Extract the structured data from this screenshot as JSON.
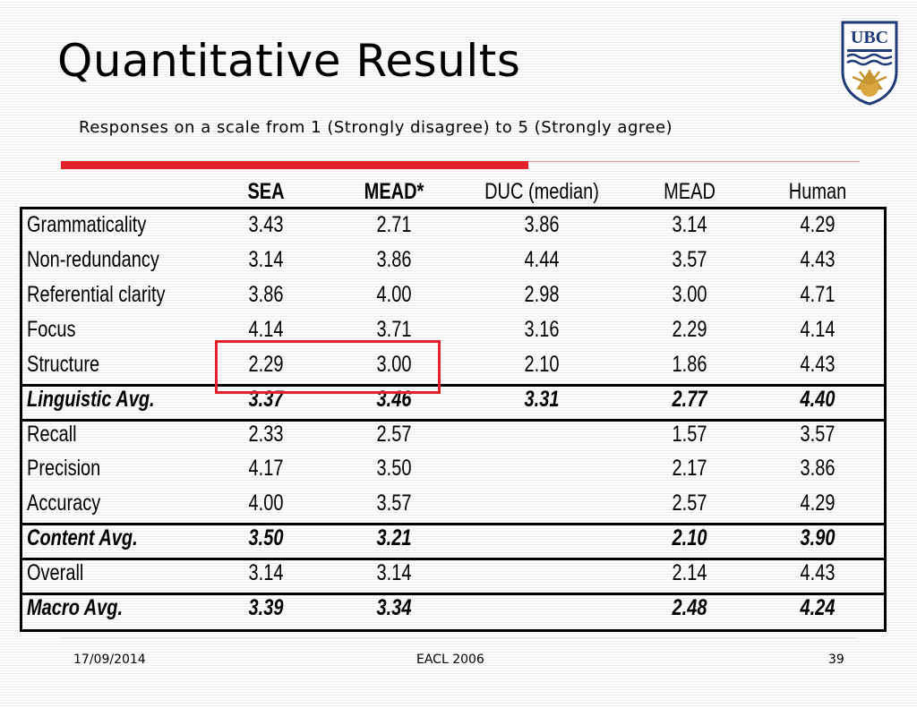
{
  "slide": {
    "title": "Quantitative Results",
    "subtitle": "Responses on a scale from 1 (Strongly disagree) to 5 (Strongly agree)",
    "logo_text": "UBC",
    "accent_color": "#e4212b",
    "logo_color": "#1e3a78"
  },
  "table": {
    "headers": [
      "SEA",
      "MEAD*",
      "DUC (median)",
      "MEAD",
      "Human"
    ],
    "rows": [
      {
        "label": "Grammaticality",
        "values": [
          "3.43",
          "2.71",
          "3.86",
          "3.14",
          "4.29"
        ],
        "style": "normal"
      },
      {
        "label": "Non-redundancy",
        "values": [
          "3.14",
          "3.86",
          "4.44",
          "3.57",
          "4.43"
        ],
        "style": "normal"
      },
      {
        "label": "Referential clarity",
        "values": [
          "3.86",
          "4.00",
          "2.98",
          "3.00",
          "4.71"
        ],
        "style": "normal"
      },
      {
        "label": "Focus",
        "values": [
          "4.14",
          "3.71",
          "3.16",
          "2.29",
          "4.14"
        ],
        "style": "normal"
      },
      {
        "label": "Structure",
        "values": [
          "2.29",
          "3.00",
          "2.10",
          "1.86",
          "4.43"
        ],
        "style": "normal"
      },
      {
        "label": "Linguistic Avg.",
        "values": [
          "3.37",
          "3.46",
          "3.31",
          "2.77",
          "4.40"
        ],
        "style": "avg"
      },
      {
        "label": "Recall",
        "values": [
          "2.33",
          "2.57",
          "",
          "1.57",
          "3.57"
        ],
        "style": "normal"
      },
      {
        "label": "Precision",
        "values": [
          "4.17",
          "3.50",
          "",
          "2.17",
          "3.86"
        ],
        "style": "normal"
      },
      {
        "label": "Accuracy",
        "values": [
          "4.00",
          "3.57",
          "",
          "2.57",
          "4.29"
        ],
        "style": "normal"
      },
      {
        "label": "Content Avg.",
        "values": [
          "3.50",
          "3.21",
          "",
          "2.10",
          "3.90"
        ],
        "style": "avg"
      },
      {
        "label": "Overall",
        "values": [
          "3.14",
          "3.14",
          "",
          "2.14",
          "4.43"
        ],
        "style": "normal"
      },
      {
        "label": "Macro Avg.",
        "values": [
          "3.39",
          "3.34",
          "",
          "2.48",
          "4.24"
        ],
        "style": "avg"
      }
    ]
  },
  "footer": {
    "date": "17/09/2014",
    "venue": "EACL 2006",
    "page": "39"
  }
}
